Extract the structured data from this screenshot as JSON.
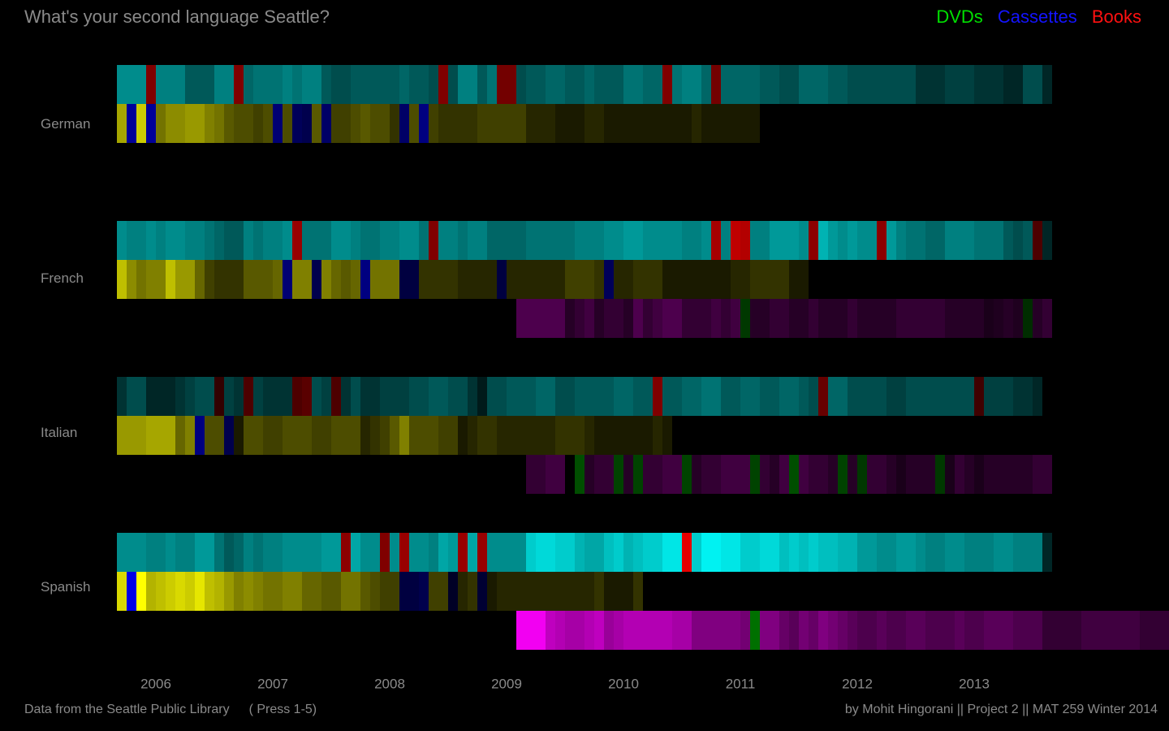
{
  "page": {
    "title": "What's your second language Seattle?",
    "footer_source": "Data from the Seattle Public Library",
    "footer_hint": "( Press 1-5)",
    "footer_credit": "by Mohit Hingorani || Project 2 || MAT 259 Winter 2014"
  },
  "legend": [
    {
      "label": "DVDs",
      "color": "#00e000"
    },
    {
      "label": "Cassettes",
      "color": "#1414ff"
    },
    {
      "label": "Books",
      "color": "#ff1010"
    }
  ],
  "chart_data": {
    "type": "heatmap",
    "title": "What's your second language Seattle?",
    "x_ticks": [
      "2006",
      "2007",
      "2008",
      "2009",
      "2010",
      "2011",
      "2012",
      "2013"
    ],
    "x_range": [
      "2005-08",
      "2013-09"
    ],
    "bin": "month",
    "bin_count": 96,
    "intensity_range": [
      0,
      1
    ],
    "row_order": [
      "German",
      "French",
      "Italian",
      "Spanish"
    ],
    "track_palette": {
      "books_base": "#00ffff",
      "cassettes_base": "#ffff00",
      "dvds_base": "#ff00ff",
      "books_overrides": "#ff0000",
      "cassettes_overrides": "#0000ff",
      "dvds_overrides": "#00e000"
    },
    "rows": [
      {
        "language": "German",
        "books": {
          "start": 0,
          "levels": [
            0.55,
            0.55,
            0.55,
            0.5,
            0.5,
            0.5,
            0.5,
            0.35,
            0.35,
            0.35,
            0.5,
            0.5,
            0.4,
            0.4,
            0.45,
            0.45,
            0.45,
            0.5,
            0.45,
            0.5,
            0.5,
            0.35,
            0.3,
            0.3,
            0.35,
            0.35,
            0.35,
            0.35,
            0.35,
            0.4,
            0.35,
            0.35,
            0.3,
            0.3,
            0.3,
            0.5,
            0.5,
            0.35,
            0.45,
            0.5,
            0.3,
            0.3,
            0.35,
            0.35,
            0.4,
            0.4,
            0.35,
            0.35,
            0.4,
            0.35,
            0.35,
            0.35,
            0.45,
            0.45,
            0.4,
            0.4,
            0.45,
            0.45,
            0.5,
            0.5,
            0.4,
            0.4,
            0.4,
            0.4,
            0.4,
            0.4,
            0.35,
            0.35,
            0.3,
            0.3,
            0.4,
            0.4,
            0.4,
            0.35,
            0.35,
            0.3,
            0.3,
            0.3,
            0.3,
            0.3,
            0.3,
            0.3,
            0.2,
            0.2,
            0.2,
            0.25,
            0.25,
            0.25,
            0.2,
            0.2,
            0.2,
            0.15,
            0.15,
            0.3,
            0.3,
            0.15
          ],
          "overrides": {
            "3": 0.5,
            "12": 0.5,
            "33": 0.5,
            "39": 0.45,
            "40": 0.45,
            "56": 0.5,
            "61": 0.45
          }
        },
        "cassettes": {
          "start": 0,
          "levels": [
            0.65,
            0.6,
            0.8,
            0.6,
            0.45,
            0.55,
            0.55,
            0.6,
            0.6,
            0.5,
            0.45,
            0.35,
            0.3,
            0.3,
            0.25,
            0.3,
            0.35,
            0.3,
            0.3,
            0.35,
            0.35,
            0.3,
            0.25,
            0.25,
            0.3,
            0.35,
            0.3,
            0.3,
            0.2,
            0.3,
            0.3,
            0.25,
            0.25,
            0.2,
            0.2,
            0.2,
            0.2,
            0.25,
            0.25,
            0.25,
            0.25,
            0.25,
            0.15,
            0.15,
            0.15,
            0.1,
            0.1,
            0.1,
            0.15,
            0.15,
            0.1,
            0.1,
            0.1,
            0.1,
            0.1,
            0.1,
            0.1,
            0.1,
            0.1,
            0.15,
            0.1,
            0.1,
            0.1,
            0.1,
            0.1,
            0.1
          ],
          "overrides": {
            "1": 0.6,
            "3": 0.6,
            "16": 0.45,
            "18": 0.35,
            "19": 0.3,
            "21": 0.4,
            "29": 0.4,
            "31": 0.5
          }
        },
        "dvds": null
      },
      {
        "language": "French",
        "books": {
          "start": 0,
          "levels": [
            0.55,
            0.5,
            0.5,
            0.55,
            0.5,
            0.55,
            0.55,
            0.5,
            0.5,
            0.45,
            0.4,
            0.35,
            0.35,
            0.5,
            0.45,
            0.5,
            0.5,
            0.55,
            0.55,
            0.45,
            0.45,
            0.45,
            0.55,
            0.55,
            0.5,
            0.45,
            0.45,
            0.5,
            0.5,
            0.55,
            0.55,
            0.45,
            0.5,
            0.5,
            0.5,
            0.45,
            0.5,
            0.5,
            0.4,
            0.4,
            0.4,
            0.4,
            0.45,
            0.45,
            0.45,
            0.45,
            0.45,
            0.5,
            0.5,
            0.5,
            0.55,
            0.55,
            0.6,
            0.6,
            0.55,
            0.55,
            0.55,
            0.55,
            0.5,
            0.5,
            0.55,
            0.55,
            0.5,
            0.5,
            0.5,
            0.5,
            0.5,
            0.6,
            0.6,
            0.6,
            0.55,
            0.65,
            0.7,
            0.6,
            0.55,
            0.6,
            0.55,
            0.55,
            0.55,
            0.6,
            0.5,
            0.45,
            0.45,
            0.4,
            0.4,
            0.5,
            0.5,
            0.5,
            0.45,
            0.45,
            0.45,
            0.35,
            0.3,
            0.35,
            0.25,
            0.15
          ],
          "overrides": {
            "18": 0.6,
            "32": 0.5,
            "61": 0.65,
            "63": 0.75,
            "64": 0.7,
            "71": 0.55,
            "78": 0.55,
            "94": 0.3
          }
        },
        "cassettes": {
          "start": 0,
          "levels": [
            0.75,
            0.55,
            0.45,
            0.5,
            0.5,
            0.75,
            0.6,
            0.6,
            0.4,
            0.25,
            0.2,
            0.2,
            0.2,
            0.35,
            0.35,
            0.35,
            0.4,
            0.4,
            0.5,
            0.5,
            0.55,
            0.5,
            0.4,
            0.35,
            0.4,
            0.4,
            0.45,
            0.45,
            0.45,
            0.45,
            0.35,
            0.2,
            0.2,
            0.2,
            0.2,
            0.15,
            0.15,
            0.15,
            0.15,
            0.1,
            0.15,
            0.15,
            0.15,
            0.15,
            0.15,
            0.15,
            0.25,
            0.25,
            0.25,
            0.2,
            0.15,
            0.15,
            0.15,
            0.2,
            0.2,
            0.2,
            0.1,
            0.1,
            0.1,
            0.1,
            0.1,
            0.1,
            0.1,
            0.15,
            0.15,
            0.2,
            0.2,
            0.2,
            0.2,
            0.1,
            0.1
          ],
          "overrides": {
            "17": 0.45,
            "20": 0.3,
            "25": 0.5,
            "29": 0.25,
            "30": 0.25,
            "39": 0.25,
            "50": 0.35
          }
        },
        "dvds": {
          "start": 41,
          "levels": [
            0.3,
            0.3,
            0.3,
            0.3,
            0.3,
            0.15,
            0.2,
            0.25,
            0.15,
            0.2,
            0.2,
            0.15,
            0.3,
            0.2,
            0.25,
            0.3,
            0.3,
            0.2,
            0.2,
            0.2,
            0.25,
            0.2,
            0.25,
            0.25,
            0.15,
            0.15,
            0.2,
            0.2,
            0.15,
            0.15,
            0.2,
            0.15,
            0.15,
            0.15,
            0.2,
            0.15,
            0.15,
            0.15,
            0.15,
            0.2,
            0.2,
            0.2,
            0.2,
            0.2,
            0.15,
            0.15,
            0.15,
            0.15,
            0.1,
            0.12,
            0.15,
            0.12,
            0.1,
            0.15,
            0.2
          ],
          "overrides": {
            "23": 0.25,
            "52": 0.2
          }
        }
      },
      {
        "language": "Italian",
        "books": {
          "start": 0,
          "levels": [
            0.2,
            0.3,
            0.3,
            0.15,
            0.15,
            0.15,
            0.2,
            0.25,
            0.3,
            0.3,
            0.2,
            0.25,
            0.2,
            0.2,
            0.25,
            0.2,
            0.2,
            0.2,
            0.2,
            0.25,
            0.3,
            0.25,
            0.2,
            0.2,
            0.3,
            0.2,
            0.2,
            0.25,
            0.25,
            0.25,
            0.3,
            0.3,
            0.35,
            0.35,
            0.3,
            0.3,
            0.2,
            0.1,
            0.3,
            0.3,
            0.35,
            0.35,
            0.35,
            0.4,
            0.4,
            0.3,
            0.3,
            0.35,
            0.35,
            0.35,
            0.35,
            0.4,
            0.4,
            0.35,
            0.35,
            0.3,
            0.35,
            0.35,
            0.4,
            0.4,
            0.45,
            0.45,
            0.35,
            0.35,
            0.4,
            0.4,
            0.35,
            0.35,
            0.4,
            0.4,
            0.35,
            0.3,
            0.3,
            0.4,
            0.4,
            0.3,
            0.3,
            0.3,
            0.3,
            0.25,
            0.25,
            0.3,
            0.3,
            0.3,
            0.3,
            0.3,
            0.3,
            0.3,
            0.3,
            0.25,
            0.25,
            0.25,
            0.2,
            0.2,
            0.15
          ],
          "overrides": {
            "10": 0.2,
            "13": 0.3,
            "18": 0.3,
            "19": 0.35,
            "22": 0.3,
            "55": 0.5,
            "72": 0.4,
            "88": 0.25
          }
        },
        "cassettes": {
          "start": 0,
          "levels": [
            0.6,
            0.6,
            0.6,
            0.65,
            0.65,
            0.65,
            0.4,
            0.5,
            0.5,
            0.3,
            0.3,
            0.25,
            0.1,
            0.3,
            0.3,
            0.25,
            0.25,
            0.3,
            0.3,
            0.3,
            0.25,
            0.25,
            0.3,
            0.3,
            0.3,
            0.15,
            0.2,
            0.25,
            0.35,
            0.5,
            0.3,
            0.3,
            0.3,
            0.25,
            0.25,
            0.1,
            0.15,
            0.2,
            0.2,
            0.15,
            0.15,
            0.15,
            0.15,
            0.15,
            0.15,
            0.2,
            0.2,
            0.2,
            0.15,
            0.1,
            0.1,
            0.1,
            0.1,
            0.1,
            0.1,
            0.15,
            0.1
          ],
          "overrides": {
            "8": 0.5,
            "11": 0.3
          }
        },
        "dvds": {
          "start": 42,
          "levels": [
            0.2,
            0.2,
            0.25,
            0.25,
            0.25,
            0.2,
            0.15,
            0.2,
            0.2,
            0.15,
            0.15,
            0.2,
            0.2,
            0.2,
            0.25,
            0.25,
            0.25,
            0.15,
            0.2,
            0.2,
            0.25,
            0.25,
            0.25,
            0.25,
            0.2,
            0.15,
            0.25,
            0.2,
            0.25,
            0.2,
            0.2,
            0.15,
            0.15,
            0.15,
            0.15,
            0.2,
            0.2,
            0.15,
            0.1,
            0.15,
            0.15,
            0.15,
            0.15,
            0.1,
            0.2,
            0.15,
            0.1,
            0.15,
            0.15,
            0.15,
            0.15,
            0.15,
            0.2,
            0.2
          ],
          "overrides": {
            "5": 0.35,
            "9": 0.3,
            "11": 0.3,
            "16": 0.3,
            "23": 0.3,
            "27": 0.35,
            "32": 0.3,
            "34": 0.25,
            "42": 0.25
          }
        },
        "dvds_gap": [
          46
        ]
      },
      {
        "language": "Spanish",
        "books": {
          "start": 0,
          "levels": [
            0.55,
            0.55,
            0.55,
            0.5,
            0.5,
            0.55,
            0.5,
            0.5,
            0.6,
            0.6,
            0.45,
            0.35,
            0.4,
            0.5,
            0.45,
            0.5,
            0.5,
            0.55,
            0.55,
            0.55,
            0.55,
            0.6,
            0.6,
            0.65,
            0.65,
            0.55,
            0.55,
            0.6,
            0.55,
            0.6,
            0.55,
            0.55,
            0.5,
            0.65,
            0.6,
            0.6,
            0.65,
            0.65,
            0.55,
            0.55,
            0.55,
            0.55,
            0.8,
            0.85,
            0.85,
            0.8,
            0.8,
            0.7,
            0.65,
            0.65,
            0.75,
            0.8,
            0.7,
            0.75,
            0.8,
            0.8,
            0.9,
            0.9,
            0.85,
            0.8,
            0.95,
            0.95,
            0.9,
            0.9,
            0.8,
            0.8,
            0.85,
            0.85,
            0.75,
            0.8,
            0.75,
            0.8,
            0.75,
            0.75,
            0.7,
            0.7,
            0.6,
            0.6,
            0.55,
            0.55,
            0.6,
            0.6,
            0.55,
            0.5,
            0.5,
            0.55,
            0.55,
            0.5,
            0.5,
            0.5,
            0.55,
            0.55,
            0.5,
            0.5,
            0.5,
            0.15
          ],
          "overrides": {
            "23": 0.55,
            "27": 0.5,
            "29": 0.6,
            "35": 0.6,
            "37": 0.6,
            "58": 0.9
          }
        },
        "cassettes": {
          "start": 0,
          "levels": [
            0.85,
            0.9,
            1.0,
            0.7,
            0.75,
            0.8,
            0.85,
            0.8,
            0.9,
            0.75,
            0.7,
            0.6,
            0.5,
            0.55,
            0.5,
            0.45,
            0.45,
            0.5,
            0.5,
            0.4,
            0.4,
            0.35,
            0.35,
            0.45,
            0.45,
            0.35,
            0.3,
            0.25,
            0.25,
            0.3,
            0.3,
            0.3,
            0.25,
            0.25,
            0.2,
            0.15,
            0.2,
            0.1,
            0.1,
            0.15,
            0.15,
            0.15,
            0.15,
            0.15,
            0.15,
            0.15,
            0.15,
            0.15,
            0.15,
            0.2,
            0.1,
            0.1,
            0.1,
            0.2
          ],
          "overrides": {
            "1": 0.9,
            "29": 0.25,
            "30": 0.25,
            "31": 0.3,
            "34": 0.15,
            "37": 0.2
          }
        },
        "dvds": {
          "start": 41,
          "levels": [
            0.95,
            0.95,
            0.95,
            0.75,
            0.7,
            0.65,
            0.65,
            0.7,
            0.75,
            0.6,
            0.65,
            0.7,
            0.7,
            0.7,
            0.7,
            0.7,
            0.65,
            0.65,
            0.5,
            0.5,
            0.5,
            0.5,
            0.5,
            0.45,
            0.5,
            0.5,
            0.5,
            0.4,
            0.35,
            0.45,
            0.4,
            0.5,
            0.45,
            0.4,
            0.35,
            0.3,
            0.3,
            0.35,
            0.3,
            0.3,
            0.35,
            0.35,
            0.3,
            0.3,
            0.3,
            0.35,
            0.3,
            0.3,
            0.35,
            0.35,
            0.35,
            0.3,
            0.3,
            0.3,
            0.2,
            0.2,
            0.2,
            0.2,
            0.25,
            0.25,
            0.25,
            0.25,
            0.25,
            0.25,
            0.2,
            0.2,
            0.2,
            0.2,
            0.2,
            0.2
          ],
          "overrides": {
            "24": 0.5
          }
        }
      }
    ]
  }
}
